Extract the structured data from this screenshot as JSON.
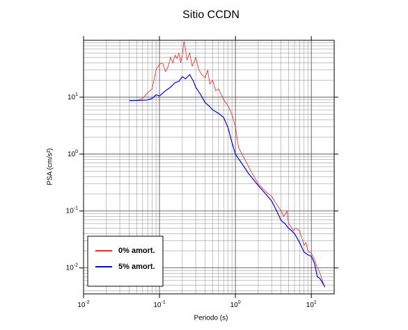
{
  "chart_data": {
    "type": "line",
    "title": "Sitio CCDN",
    "x_label": "Periodo (s)",
    "y_label": "PSA (cm/s²)",
    "x_scale": "log",
    "y_scale": "log",
    "grid": true,
    "minor_grid": true,
    "legend_position": "lower left",
    "xlim": [
      0.01,
      20
    ],
    "ylim": [
      0.0035,
      100
    ],
    "xticks": [
      {
        "value": 0.01,
        "label": "10",
        "exponent": "-2"
      },
      {
        "value": 0.1,
        "label": "10",
        "exponent": "-1"
      },
      {
        "value": 1,
        "label": "10",
        "exponent": "0"
      },
      {
        "value": 10,
        "label": "10",
        "exponent": "1"
      }
    ],
    "yticks": [
      {
        "value": 0.01,
        "label": "10",
        "exponent": "-2"
      },
      {
        "value": 0.1,
        "label": "10",
        "exponent": "-1"
      },
      {
        "value": 1,
        "label": "10",
        "exponent": "0"
      },
      {
        "value": 10,
        "label": "10",
        "exponent": "1"
      }
    ],
    "series": [
      {
        "name": "0% amort.",
        "color": "#ff2020",
        "x": [
          0.04,
          0.05,
          0.06,
          0.07,
          0.08,
          0.09,
          0.1,
          0.11,
          0.12,
          0.13,
          0.14,
          0.15,
          0.16,
          0.17,
          0.18,
          0.19,
          0.2,
          0.21,
          0.22,
          0.23,
          0.25,
          0.27,
          0.3,
          0.33,
          0.36,
          0.4,
          0.43,
          0.46,
          0.5,
          0.55,
          0.6,
          0.7,
          0.8,
          0.9,
          1.0,
          1.1,
          1.3,
          1.6,
          2,
          2.5,
          3,
          3.5,
          4,
          4.3,
          4.8,
          5,
          5.3,
          5.8,
          6.2,
          7,
          8,
          8.5,
          9,
          10,
          11,
          12,
          13,
          14,
          15
        ],
        "values": [
          8.7,
          8.8,
          9.5,
          12,
          14,
          30,
          38,
          40,
          28,
          35,
          50,
          40,
          55,
          48,
          60,
          40,
          55,
          95,
          70,
          45,
          60,
          35,
          50,
          30,
          25,
          22,
          30,
          17,
          20,
          13,
          14,
          9,
          7,
          5,
          3,
          1.3,
          0.85,
          0.5,
          0.3,
          0.22,
          0.18,
          0.13,
          0.1,
          0.08,
          0.1,
          0.06,
          0.055,
          0.045,
          0.05,
          0.045,
          0.025,
          0.028,
          0.02,
          0.018,
          0.014,
          0.01,
          0.008,
          0.006,
          0.0045
        ]
      },
      {
        "name": "5% amort.",
        "color": "#0000ee",
        "x": [
          0.04,
          0.06,
          0.07,
          0.08,
          0.09,
          0.1,
          0.12,
          0.14,
          0.16,
          0.18,
          0.2,
          0.22,
          0.25,
          0.28,
          0.3,
          0.35,
          0.4,
          0.45,
          0.5,
          0.6,
          0.7,
          0.8,
          0.9,
          1.0,
          1.2,
          1.5,
          2,
          2.5,
          3,
          3.5,
          4,
          4.5,
          5,
          5.5,
          6,
          7,
          8,
          9,
          10,
          11,
          12,
          13,
          15
        ],
        "values": [
          8.7,
          8.8,
          9,
          9.5,
          11,
          10.5,
          13,
          15,
          18,
          19,
          23,
          21,
          25,
          19,
          15,
          11,
          8,
          7,
          6,
          5.2,
          4.4,
          2.9,
          1.6,
          1.0,
          0.7,
          0.45,
          0.28,
          0.2,
          0.15,
          0.1,
          0.068,
          0.06,
          0.05,
          0.045,
          0.04,
          0.028,
          0.019,
          0.017,
          0.016,
          0.012,
          0.007,
          0.0065,
          0.0047
        ]
      }
    ]
  }
}
